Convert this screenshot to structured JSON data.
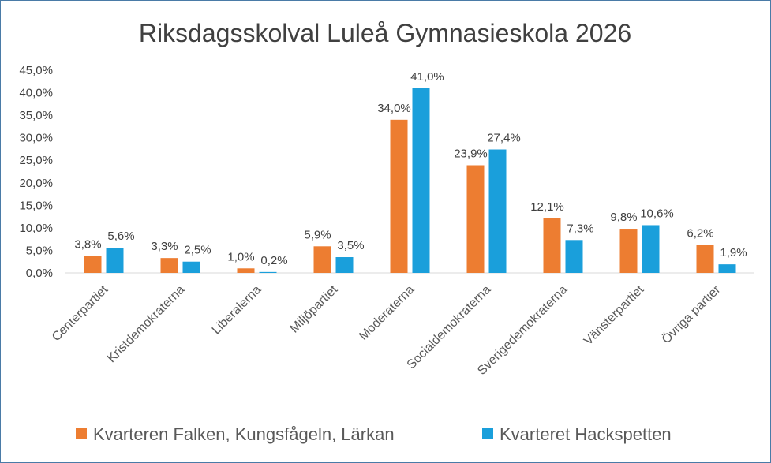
{
  "chart_data": {
    "type": "bar",
    "title": "Riksdagsskolval Luleå Gymnasieskola 2026",
    "categories": [
      "Centerpartiet",
      "Kristdemokraterna",
      "Liberalerna",
      "Miljöpartiet",
      "Moderaterna",
      "Socialdemokraterna",
      "Sverigedemokraterna",
      "Vänsterpartiet",
      "Övriga partier"
    ],
    "series": [
      {
        "name": "Kvarteren Falken, Kungsfågeln, Lärkan",
        "color": "#ed7d31",
        "values": [
          3.8,
          3.3,
          1.0,
          5.9,
          34.0,
          23.9,
          12.1,
          9.8,
          6.2
        ],
        "labels": [
          "3,8%",
          "3,3%",
          "1,0%",
          "5,9%",
          "34,0%",
          "23,9%",
          "12,1%",
          "9,8%",
          "6,2%"
        ]
      },
      {
        "name": "Kvarteret Hackspetten",
        "color": "#1a9fdb",
        "values": [
          5.6,
          2.5,
          0.2,
          3.5,
          41.0,
          27.4,
          7.3,
          10.6,
          1.9
        ],
        "labels": [
          "5,6%",
          "2,5%",
          "0,2%",
          "3,5%",
          "41,0%",
          "27,4%",
          "7,3%",
          "10,6%",
          "1,9%"
        ]
      }
    ],
    "ylim": [
      0,
      45
    ],
    "yticks": [
      "0,0%",
      "5,0%",
      "10,0%",
      "15,0%",
      "20,0%",
      "25,0%",
      "30,0%",
      "35,0%",
      "40,0%",
      "45,0%"
    ],
    "legend_position": "bottom",
    "grid": false,
    "axis_color": "#d9d9d9"
  }
}
